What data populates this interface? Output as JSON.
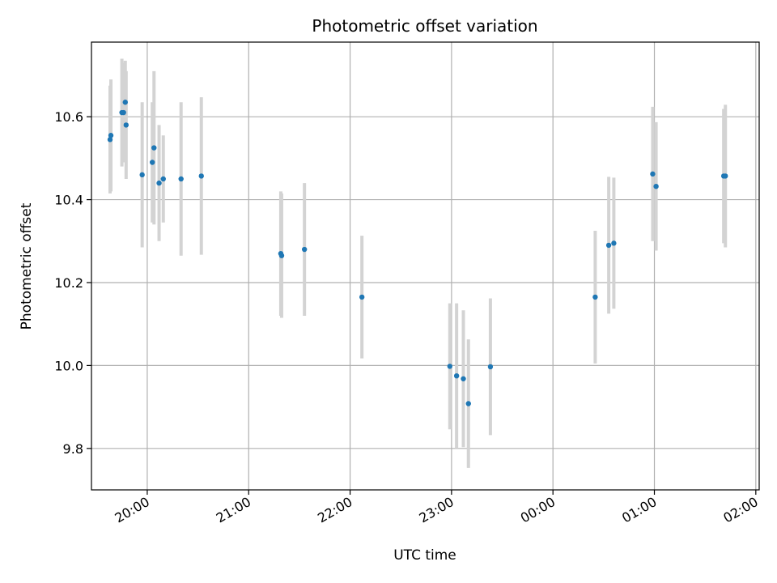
{
  "chart_data": {
    "type": "scatter",
    "title": "Photometric offset variation",
    "xlabel": "UTC time",
    "ylabel": "Photometric offset",
    "x_axis": "time",
    "x_range": [
      "2000-01-01 19:27",
      "2000-01-02 02:02"
    ],
    "ylim": [
      9.7,
      10.78
    ],
    "x_ticks": [
      {
        "t": "2000-01-01 20:00",
        "label": "20:00"
      },
      {
        "t": "2000-01-01 21:00",
        "label": "21:00"
      },
      {
        "t": "2000-01-01 22:00",
        "label": "22:00"
      },
      {
        "t": "2000-01-01 23:00",
        "label": "23:00"
      },
      {
        "t": "2000-01-02 00:00",
        "label": "00:00"
      },
      {
        "t": "2000-01-02 01:00",
        "label": "01:00"
      },
      {
        "t": "2000-01-02 02:00",
        "label": "02:00"
      }
    ],
    "y_ticks": [
      {
        "v": 9.8,
        "label": "9.8"
      },
      {
        "v": 10.0,
        "label": "10.0"
      },
      {
        "v": 10.2,
        "label": "10.2"
      },
      {
        "v": 10.4,
        "label": "10.4"
      },
      {
        "v": 10.6,
        "label": "10.6"
      }
    ],
    "grid": true,
    "point_color": "#1f77b4",
    "errorbar_color": "#d3d3d3",
    "points": [
      {
        "t": "2000-01-01 19:38",
        "y": 10.545,
        "err": 0.13
      },
      {
        "t": "2000-01-01 19:38.5",
        "y": 10.555,
        "err": 0.135
      },
      {
        "t": "2000-01-01 19:47",
        "y": 10.635,
        "err": 0.1
      },
      {
        "t": "2000-01-01 19:45",
        "y": 10.61,
        "err": 0.13
      },
      {
        "t": "2000-01-01 19:46",
        "y": 10.61,
        "err": 0.12
      },
      {
        "t": "2000-01-01 19:47.5",
        "y": 10.58,
        "err": 0.13
      },
      {
        "t": "2000-01-01 19:57",
        "y": 10.46,
        "err": 0.175
      },
      {
        "t": "2000-01-01 20:03",
        "y": 10.49,
        "err": 0.145
      },
      {
        "t": "2000-01-01 20:04",
        "y": 10.525,
        "err": 0.185
      },
      {
        "t": "2000-01-01 20:07",
        "y": 10.44,
        "err": 0.14
      },
      {
        "t": "2000-01-01 20:09.5",
        "y": 10.45,
        "err": 0.105
      },
      {
        "t": "2000-01-01 20:20",
        "y": 10.45,
        "err": 0.185
      },
      {
        "t": "2000-01-01 20:32",
        "y": 10.457,
        "err": 0.19
      },
      {
        "t": "2000-01-01 21:19",
        "y": 10.27,
        "err": 0.15
      },
      {
        "t": "2000-01-01 21:19.5",
        "y": 10.265,
        "err": 0.15
      },
      {
        "t": "2000-01-01 21:33",
        "y": 10.28,
        "err": 0.16
      },
      {
        "t": "2000-01-01 22:07",
        "y": 10.165,
        "err": 0.148
      },
      {
        "t": "2000-01-01 22:59",
        "y": 9.998,
        "err": 0.152
      },
      {
        "t": "2000-01-01 23:03",
        "y": 9.975,
        "err": 0.175
      },
      {
        "t": "2000-01-01 23:07",
        "y": 9.968,
        "err": 0.165
      },
      {
        "t": "2000-01-01 23:10",
        "y": 9.908,
        "err": 0.155
      },
      {
        "t": "2000-01-01 23:23",
        "y": 9.997,
        "err": 0.165
      },
      {
        "t": "2000-01-02 00:25",
        "y": 10.165,
        "err": 0.16
      },
      {
        "t": "2000-01-02 00:33",
        "y": 10.29,
        "err": 0.165
      },
      {
        "t": "2000-01-02 00:36",
        "y": 10.295,
        "err": 0.158
      },
      {
        "t": "2000-01-02 00:59",
        "y": 10.462,
        "err": 0.162
      },
      {
        "t": "2000-01-02 01:01",
        "y": 10.432,
        "err": 0.155
      },
      {
        "t": "2000-01-02 01:41",
        "y": 10.457,
        "err": 0.162
      },
      {
        "t": "2000-01-02 01:42",
        "y": 10.457,
        "err": 0.172
      }
    ]
  }
}
